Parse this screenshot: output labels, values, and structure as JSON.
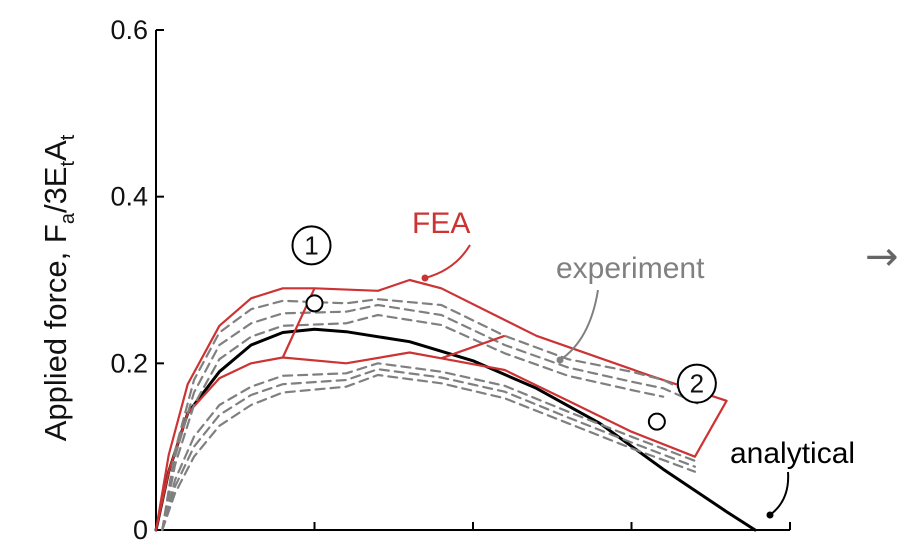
{
  "chart_data": {
    "type": "line",
    "title": "",
    "ylabel": "Applied force,",
    "ylabel_math": {
      "F": "F",
      "a": "a",
      "mid": "/3E",
      "t1": "t",
      "A": "A",
      "t2": "t"
    },
    "ylim": [
      0,
      0.6
    ],
    "yticks": [
      0,
      0.2,
      0.4,
      0.6
    ],
    "ytick_labels": [
      "0",
      "0.2",
      "0.4",
      "0.6"
    ],
    "xtick_labels": [
      "",
      "",
      "",
      ""
    ],
    "colors": {
      "analytical": "#000000",
      "fea": "#cc3333",
      "experiment": "#808080"
    },
    "series": [
      {
        "name": "analytical",
        "points": [
          [
            0,
            0
          ],
          [
            0.02,
            0.07
          ],
          [
            0.05,
            0.14
          ],
          [
            0.1,
            0.19
          ],
          [
            0.15,
            0.222
          ],
          [
            0.2,
            0.237
          ],
          [
            0.25,
            0.241
          ],
          [
            0.3,
            0.238
          ],
          [
            0.4,
            0.226
          ],
          [
            0.5,
            0.203
          ],
          [
            0.6,
            0.17
          ],
          [
            0.7,
            0.128
          ],
          [
            0.8,
            0.073
          ],
          [
            0.9,
            0.022
          ],
          [
            0.945,
            0
          ]
        ]
      },
      {
        "name": "FEA",
        "points": [
          [
            0,
            0
          ],
          [
            0.02,
            0.09
          ],
          [
            0.05,
            0.175
          ],
          [
            0.1,
            0.245
          ],
          [
            0.15,
            0.278
          ],
          [
            0.2,
            0.29
          ],
          [
            0.25,
            0.29
          ],
          [
            0.35,
            0.287
          ],
          [
            0.4,
            0.3
          ],
          [
            0.45,
            0.29
          ],
          [
            0.6,
            0.233
          ],
          [
            0.78,
            0.185
          ],
          [
            0.9,
            0.155
          ]
        ]
      },
      {
        "name": "FEA-lower",
        "points": [
          [
            0,
            0
          ],
          [
            0.02,
            0.07
          ],
          [
            0.05,
            0.14
          ],
          [
            0.1,
            0.182
          ],
          [
            0.15,
            0.2
          ],
          [
            0.2,
            0.207
          ],
          [
            0.3,
            0.2
          ],
          [
            0.4,
            0.213
          ],
          [
            0.45,
            0.206
          ],
          [
            0.55,
            0.192
          ],
          [
            0.65,
            0.155
          ],
          [
            0.75,
            0.118
          ],
          [
            0.85,
            0.088
          ]
        ]
      },
      {
        "name": "experiment-1",
        "points": [
          [
            0.01,
            0
          ],
          [
            0.03,
            0.095
          ],
          [
            0.06,
            0.18
          ],
          [
            0.1,
            0.237
          ],
          [
            0.15,
            0.265
          ],
          [
            0.2,
            0.275
          ],
          [
            0.3,
            0.272
          ],
          [
            0.35,
            0.277
          ],
          [
            0.45,
            0.27
          ],
          [
            0.55,
            0.233
          ],
          [
            0.65,
            0.205
          ],
          [
            0.75,
            0.19
          ],
          [
            0.8,
            0.18
          ],
          [
            0.86,
            0.158
          ]
        ]
      },
      {
        "name": "experiment-2",
        "points": [
          [
            0.01,
            0
          ],
          [
            0.03,
            0.088
          ],
          [
            0.06,
            0.165
          ],
          [
            0.1,
            0.222
          ],
          [
            0.15,
            0.248
          ],
          [
            0.2,
            0.26
          ],
          [
            0.3,
            0.262
          ],
          [
            0.35,
            0.27
          ],
          [
            0.45,
            0.258
          ],
          [
            0.55,
            0.222
          ],
          [
            0.65,
            0.195
          ],
          [
            0.75,
            0.178
          ],
          [
            0.8,
            0.17
          ],
          [
            0.86,
            0.15
          ]
        ]
      },
      {
        "name": "experiment-3",
        "points": [
          [
            0.01,
            0
          ],
          [
            0.03,
            0.078
          ],
          [
            0.06,
            0.15
          ],
          [
            0.1,
            0.205
          ],
          [
            0.15,
            0.232
          ],
          [
            0.2,
            0.245
          ],
          [
            0.3,
            0.248
          ],
          [
            0.35,
            0.258
          ],
          [
            0.45,
            0.246
          ],
          [
            0.55,
            0.212
          ],
          [
            0.65,
            0.185
          ],
          [
            0.75,
            0.168
          ],
          [
            0.8,
            0.16
          ]
        ]
      },
      {
        "name": "experiment-4",
        "points": [
          [
            0.01,
            0
          ],
          [
            0.03,
            0.06
          ],
          [
            0.06,
            0.112
          ],
          [
            0.1,
            0.15
          ],
          [
            0.15,
            0.172
          ],
          [
            0.2,
            0.185
          ],
          [
            0.3,
            0.188
          ],
          [
            0.35,
            0.2
          ],
          [
            0.45,
            0.19
          ],
          [
            0.55,
            0.173
          ],
          [
            0.65,
            0.142
          ],
          [
            0.75,
            0.112
          ],
          [
            0.85,
            0.083
          ]
        ]
      },
      {
        "name": "experiment-5",
        "points": [
          [
            0.01,
            0
          ],
          [
            0.03,
            0.052
          ],
          [
            0.06,
            0.1
          ],
          [
            0.1,
            0.138
          ],
          [
            0.15,
            0.162
          ],
          [
            0.2,
            0.175
          ],
          [
            0.3,
            0.18
          ],
          [
            0.35,
            0.193
          ],
          [
            0.45,
            0.183
          ],
          [
            0.55,
            0.166
          ],
          [
            0.65,
            0.135
          ],
          [
            0.75,
            0.105
          ],
          [
            0.85,
            0.076
          ]
        ]
      },
      {
        "name": "experiment-6",
        "points": [
          [
            0.01,
            0
          ],
          [
            0.03,
            0.044
          ],
          [
            0.06,
            0.088
          ],
          [
            0.1,
            0.125
          ],
          [
            0.15,
            0.15
          ],
          [
            0.2,
            0.165
          ],
          [
            0.3,
            0.172
          ],
          [
            0.35,
            0.186
          ],
          [
            0.45,
            0.176
          ],
          [
            0.55,
            0.158
          ],
          [
            0.65,
            0.128
          ],
          [
            0.75,
            0.098
          ],
          [
            0.85,
            0.07
          ]
        ]
      }
    ],
    "annotations": [
      {
        "name": "fea-label",
        "text": "FEA",
        "color": "#cc3333"
      },
      {
        "name": "experiment-label",
        "text": "experiment",
        "color": "#808080"
      },
      {
        "name": "analytical-label",
        "text": "analytical",
        "color": "#000000"
      }
    ],
    "markers": [
      {
        "name": "marker-1",
        "label": "1",
        "x": 0.25,
        "y": 0.272
      },
      {
        "name": "marker-2",
        "label": "2",
        "x": 0.79,
        "y": 0.13
      }
    ],
    "offscreen_arrow": "→"
  }
}
